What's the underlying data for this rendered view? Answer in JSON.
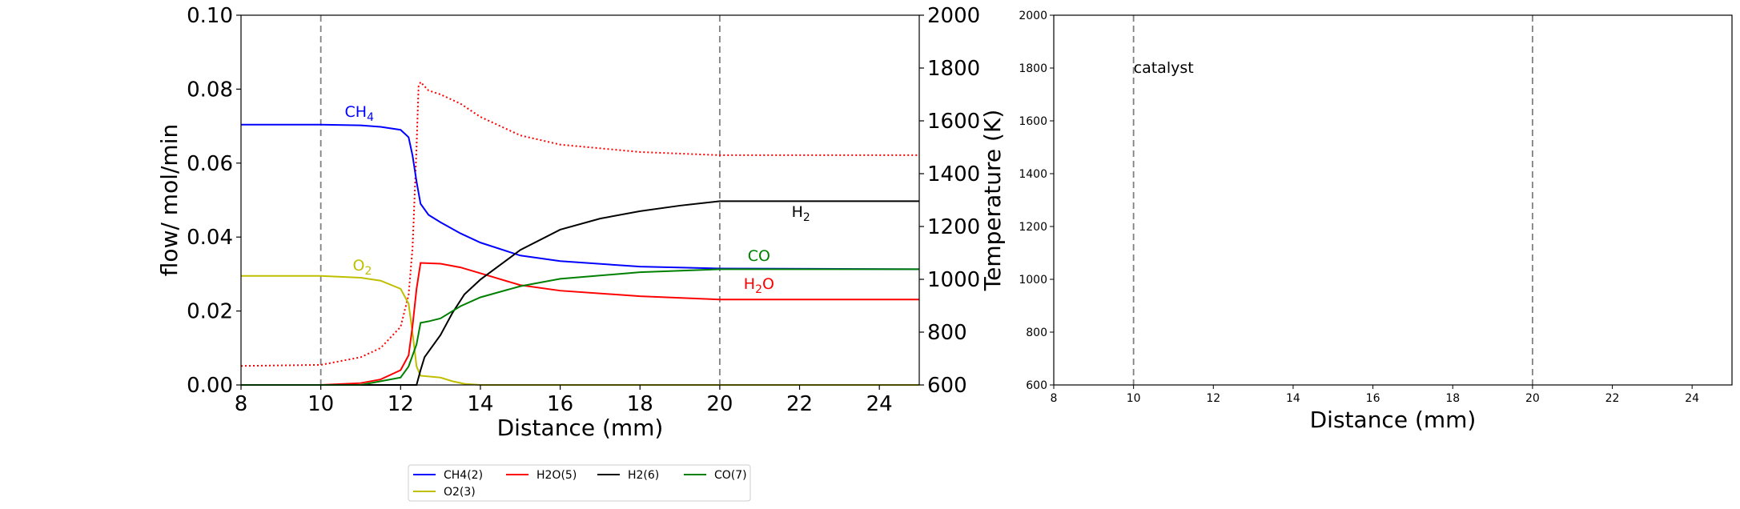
{
  "chart_data": [
    {
      "type": "line",
      "panel": "left",
      "xlabel": "Distance (mm)",
      "ylabel": "flow/ mol/min",
      "ylabel_right": "Temperature (K)",
      "xlim": [
        8,
        25
      ],
      "ylim": [
        0.0,
        0.1
      ],
      "ylim_right": [
        600,
        2000
      ],
      "xticks": [
        "8",
        "10",
        "12",
        "14",
        "16",
        "18",
        "20",
        "22",
        "24"
      ],
      "yticks": [
        "0.00",
        "0.02",
        "0.04",
        "0.06",
        "0.08",
        "0.10"
      ],
      "yticks_right": [
        "600",
        "800",
        "1000",
        "1200",
        "1400",
        "1600",
        "1800",
        "2000"
      ],
      "vlines": [
        10,
        20
      ],
      "grid": false,
      "series": [
        {
          "name": "CH4(2)",
          "color": "#0000ff",
          "x": [
            8,
            10,
            11,
            11.5,
            12,
            12.2,
            12.3,
            12.4,
            12.5,
            12.7,
            13,
            13.5,
            14,
            15,
            16,
            18,
            20,
            25
          ],
          "values": [
            0.0704,
            0.0704,
            0.0702,
            0.0698,
            0.069,
            0.067,
            0.062,
            0.055,
            0.049,
            0.046,
            0.044,
            0.041,
            0.0385,
            0.035,
            0.0335,
            0.032,
            0.0315,
            0.0313
          ]
        },
        {
          "name": "O2(3)",
          "color": "#bfbf00",
          "x": [
            8,
            10,
            11,
            11.5,
            12,
            12.2,
            12.3,
            12.4,
            12.5,
            13,
            13.3,
            13.6,
            14,
            25
          ],
          "values": [
            0.0295,
            0.0295,
            0.029,
            0.0282,
            0.026,
            0.022,
            0.014,
            0.005,
            0.0025,
            0.002,
            0.001,
            0.0003,
            0.0,
            0.0
          ]
        },
        {
          "name": "H2O(5)",
          "color": "#ff0000",
          "x": [
            8,
            10,
            11,
            11.5,
            12,
            12.2,
            12.3,
            12.4,
            12.5,
            13,
            13.5,
            14,
            15,
            16,
            18,
            20,
            25
          ],
          "values": [
            0.0,
            0.0,
            0.0005,
            0.0015,
            0.004,
            0.008,
            0.016,
            0.026,
            0.033,
            0.0328,
            0.0318,
            0.0302,
            0.027,
            0.0255,
            0.024,
            0.0231,
            0.0231
          ]
        },
        {
          "name": "H2(6)",
          "color": "#000000",
          "x": [
            8,
            12.4,
            12.5,
            12.6,
            13,
            13.3,
            13.6,
            14,
            15,
            16,
            17,
            18,
            19,
            20,
            25
          ],
          "values": [
            0.0,
            0.0,
            0.004,
            0.0075,
            0.0135,
            0.0195,
            0.0245,
            0.0285,
            0.0365,
            0.042,
            0.045,
            0.047,
            0.0485,
            0.0497,
            0.0497
          ]
        },
        {
          "name": "CO(7)",
          "color": "#008000",
          "x": [
            8,
            11,
            12,
            12.2,
            12.4,
            12.5,
            12.7,
            13,
            13.5,
            14,
            15,
            16,
            18,
            20,
            25
          ],
          "values": [
            0.0,
            0.0,
            0.002,
            0.005,
            0.011,
            0.0168,
            0.0172,
            0.018,
            0.0213,
            0.0237,
            0.0267,
            0.0287,
            0.0305,
            0.0313,
            0.0313
          ]
        }
      ],
      "temperature": {
        "color": "#ff0000",
        "style": "dotted",
        "x": [
          8,
          10,
          11,
          11.5,
          12,
          12.2,
          12.3,
          12.4,
          12.45,
          12.5,
          12.7,
          13,
          13.5,
          14,
          15,
          16,
          18,
          20,
          25
        ],
        "values": [
          672,
          676,
          705,
          740,
          820,
          940,
          1120,
          1500,
          1730,
          1747,
          1715,
          1700,
          1665,
          1615,
          1545,
          1510,
          1482,
          1470,
          1470
        ]
      },
      "annotations": [
        {
          "text": "CH",
          "sub": "4",
          "color": "#0000ff",
          "x": 10.6,
          "y": 0.0725
        },
        {
          "text": "O",
          "sub": "2",
          "color": "#bfbf00",
          "x": 10.8,
          "y": 0.031
        },
        {
          "text": "H",
          "sub": "2",
          "color": "#000000",
          "x": 21.8,
          "y": 0.0455
        },
        {
          "text": "CO",
          "sub": "",
          "color": "#008000",
          "x": 20.7,
          "y": 0.0335
        },
        {
          "text": "H",
          "sub": "2",
          "after": "O",
          "color": "#ff0000",
          "x": 20.6,
          "y": 0.026
        }
      ]
    },
    {
      "type": "line",
      "panel": "right",
      "xlabel": "Distance (mm)",
      "xlim": [
        8,
        25
      ],
      "ylim": [
        600,
        2000
      ],
      "xticks": [
        "8",
        "10",
        "12",
        "14",
        "16",
        "18",
        "20",
        "22",
        "24"
      ],
      "yticks": [
        "600",
        "800",
        "1000",
        "1200",
        "1400",
        "1600",
        "1800",
        "2000"
      ],
      "vlines": [
        10,
        20
      ],
      "grid": false,
      "annotation": {
        "text": "catalyst",
        "x": 10.0,
        "y": 1800
      },
      "series": []
    }
  ],
  "legend": {
    "placement": "below",
    "entries": [
      {
        "label": "CH4(2)",
        "color": "#0000ff"
      },
      {
        "label": "H2O(5)",
        "color": "#ff0000"
      },
      {
        "label": "H2(6)",
        "color": "#000000"
      },
      {
        "label": "CO(7)",
        "color": "#008000"
      },
      {
        "label": "O2(3)",
        "color": "#bfbf00"
      }
    ]
  }
}
